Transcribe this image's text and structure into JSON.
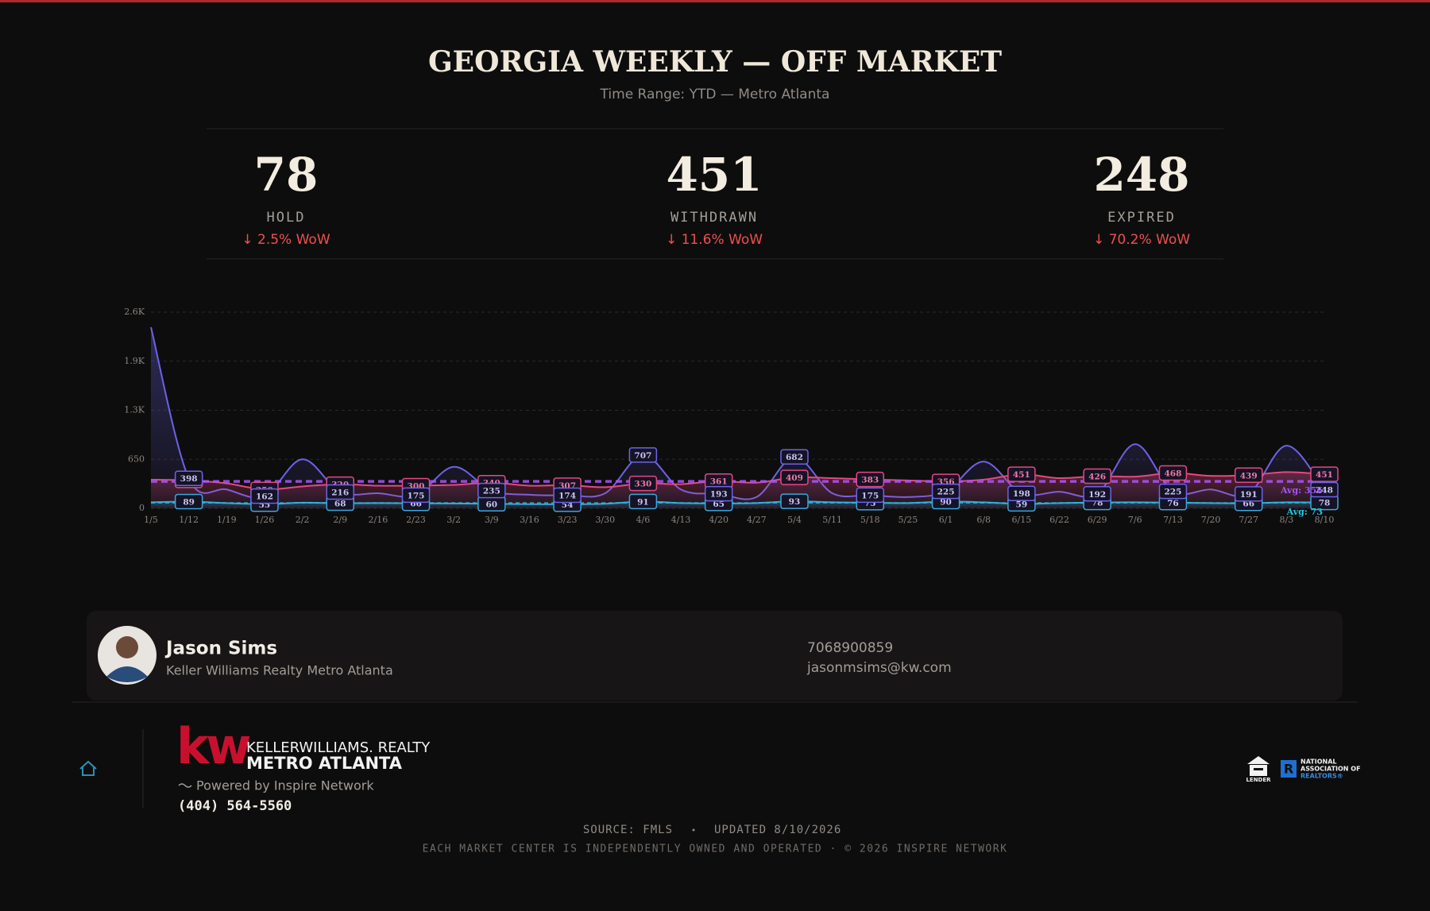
{
  "header": {
    "title": "GEORGIA WEEKLY — OFF MARKET",
    "subtitle": "Time Range: YTD — Metro Atlanta"
  },
  "kpis": [
    {
      "change": "↓ 2.5% WoW"
    },
    {
      "change": "↓ 11.6% WoW"
    },
    {
      "change": "↓ 70.2% WoW"
    }
  ],
  "chart_data": {
    "type": "line",
    "categories": [
      "1/5",
      "1/12",
      "1/19",
      "1/26",
      "2/2",
      "2/9",
      "2/16",
      "2/23",
      "3/2",
      "3/9",
      "3/16",
      "3/23",
      "3/30",
      "4/6",
      "4/13",
      "4/20",
      "4/27",
      "5/4",
      "5/11",
      "5/18",
      "5/25",
      "6/1",
      "6/8",
      "6/15",
      "6/22",
      "6/29",
      "7/6",
      "7/13",
      "7/20",
      "7/27",
      "8/3",
      "8/10"
    ],
    "series": [
      {
        "name": "HOLD",
        "color": "#3aa6d8",
        "values": [
          80,
          89,
          70,
          55,
          75,
          68,
          70,
          66,
          65,
          60,
          55,
          54,
          60,
          91,
          70,
          65,
          70,
          93,
          80,
          75,
          70,
          90,
          80,
          59,
          70,
          78,
          80,
          76,
          70,
          66,
          80,
          78
        ]
      },
      {
        "name": "WITHDRAWN",
        "color": "#e5487f",
        "values": [
          380,
          370,
          330,
          250,
          290,
          320,
          300,
          300,
          310,
          340,
          300,
          307,
          280,
          330,
          320,
          361,
          340,
          409,
          400,
          383,
          370,
          356,
          380,
          451,
          400,
          426,
          420,
          468,
          430,
          439,
          480,
          451
        ]
      },
      {
        "name": "EXPIRED",
        "color": "#6b63e8",
        "values": [
          2400,
          398,
          250,
          162,
          650,
          216,
          200,
          175,
          550,
          235,
          180,
          174,
          200,
          707,
          250,
          193,
          150,
          682,
          200,
          175,
          150,
          225,
          620,
          198,
          220,
          192,
          850,
          225,
          250,
          191,
          830,
          248
        ]
      }
    ],
    "ylim": [
      0,
      2600
    ],
    "yticks": [
      0,
      650,
      {
        "value": 1300,
        "label": "1.3K"
      },
      {
        "value": 1950,
        "label": "1.9K"
      },
      {
        "value": 2600,
        "label": "2.6K"
      }
    ],
    "grid": true,
    "annotations": [
      {
        "label": "Avg: 356",
        "value": 356,
        "color": "#a855f7"
      },
      {
        "label": "Avg: 73",
        "value": 73,
        "color": "#22c7e0"
      }
    ]
  },
  "agent": {
    "name": "Jason Sims",
    "company": "Keller Williams Realty Metro Atlanta",
    "phone": "7068900859",
    "email": "jasonmsims@kw.com"
  },
  "footer": {
    "logo_mark": "kw",
    "logo_brand": "KELLERWILLIAMS. REALTY",
    "logo_office": "METRO ATLANTA",
    "powered": "Powered by Inspire Network",
    "phone": "(404) 564-5560",
    "source": "SOURCE: FMLS",
    "updated": "UPDATED 8/10/2026",
    "disclaimer": "EACH MARKET CENTER IS INDEPENDENTLY OWNED AND OPERATED · © 2026 INSPIRE NETWORK",
    "equal_housing": "LENDER",
    "nar": [
      "NATIONAL",
      "ASSOCIATION OF",
      "REALTORS®"
    ]
  }
}
